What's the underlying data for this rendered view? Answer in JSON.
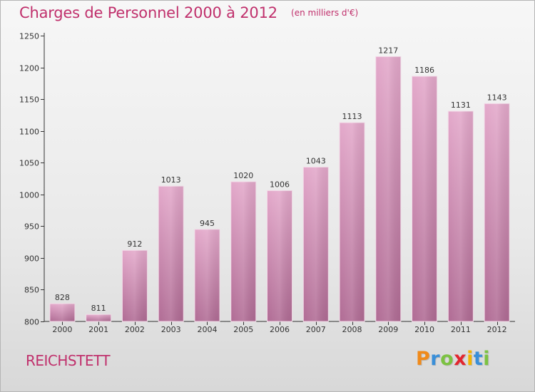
{
  "header": {
    "title": "Charges de Personnel 2000 à 2012",
    "unit": "(en milliers d'€)"
  },
  "footer": {
    "commune": "REICHSTETT",
    "logo": {
      "letters": [
        "P",
        "r",
        "o",
        "x",
        "i",
        "t",
        "i"
      ],
      "colors": [
        "#f08a1a",
        "#3a8fd8",
        "#7cc242",
        "#e2262e",
        "#f3b400",
        "#3a8fd8",
        "#7cc242"
      ]
    }
  },
  "chart_data": {
    "type": "bar",
    "title": "Charges de Personnel 2000 à 2012",
    "subtitle": "(en milliers d'€)",
    "xlabel": "",
    "ylabel": "",
    "categories": [
      "2000",
      "2001",
      "2002",
      "2003",
      "2004",
      "2005",
      "2006",
      "2007",
      "2008",
      "2009",
      "2010",
      "2011",
      "2012"
    ],
    "values": [
      828,
      811,
      912,
      1013,
      945,
      1020,
      1006,
      1043,
      1113,
      1217,
      1186,
      1131,
      1143
    ],
    "ylim": [
      800,
      1250
    ],
    "yticks": [
      800,
      850,
      900,
      950,
      1000,
      1050,
      1100,
      1150,
      1200,
      1250
    ],
    "grid": false,
    "bar_color": "#c77aa6",
    "title_color": "#c0306c"
  }
}
